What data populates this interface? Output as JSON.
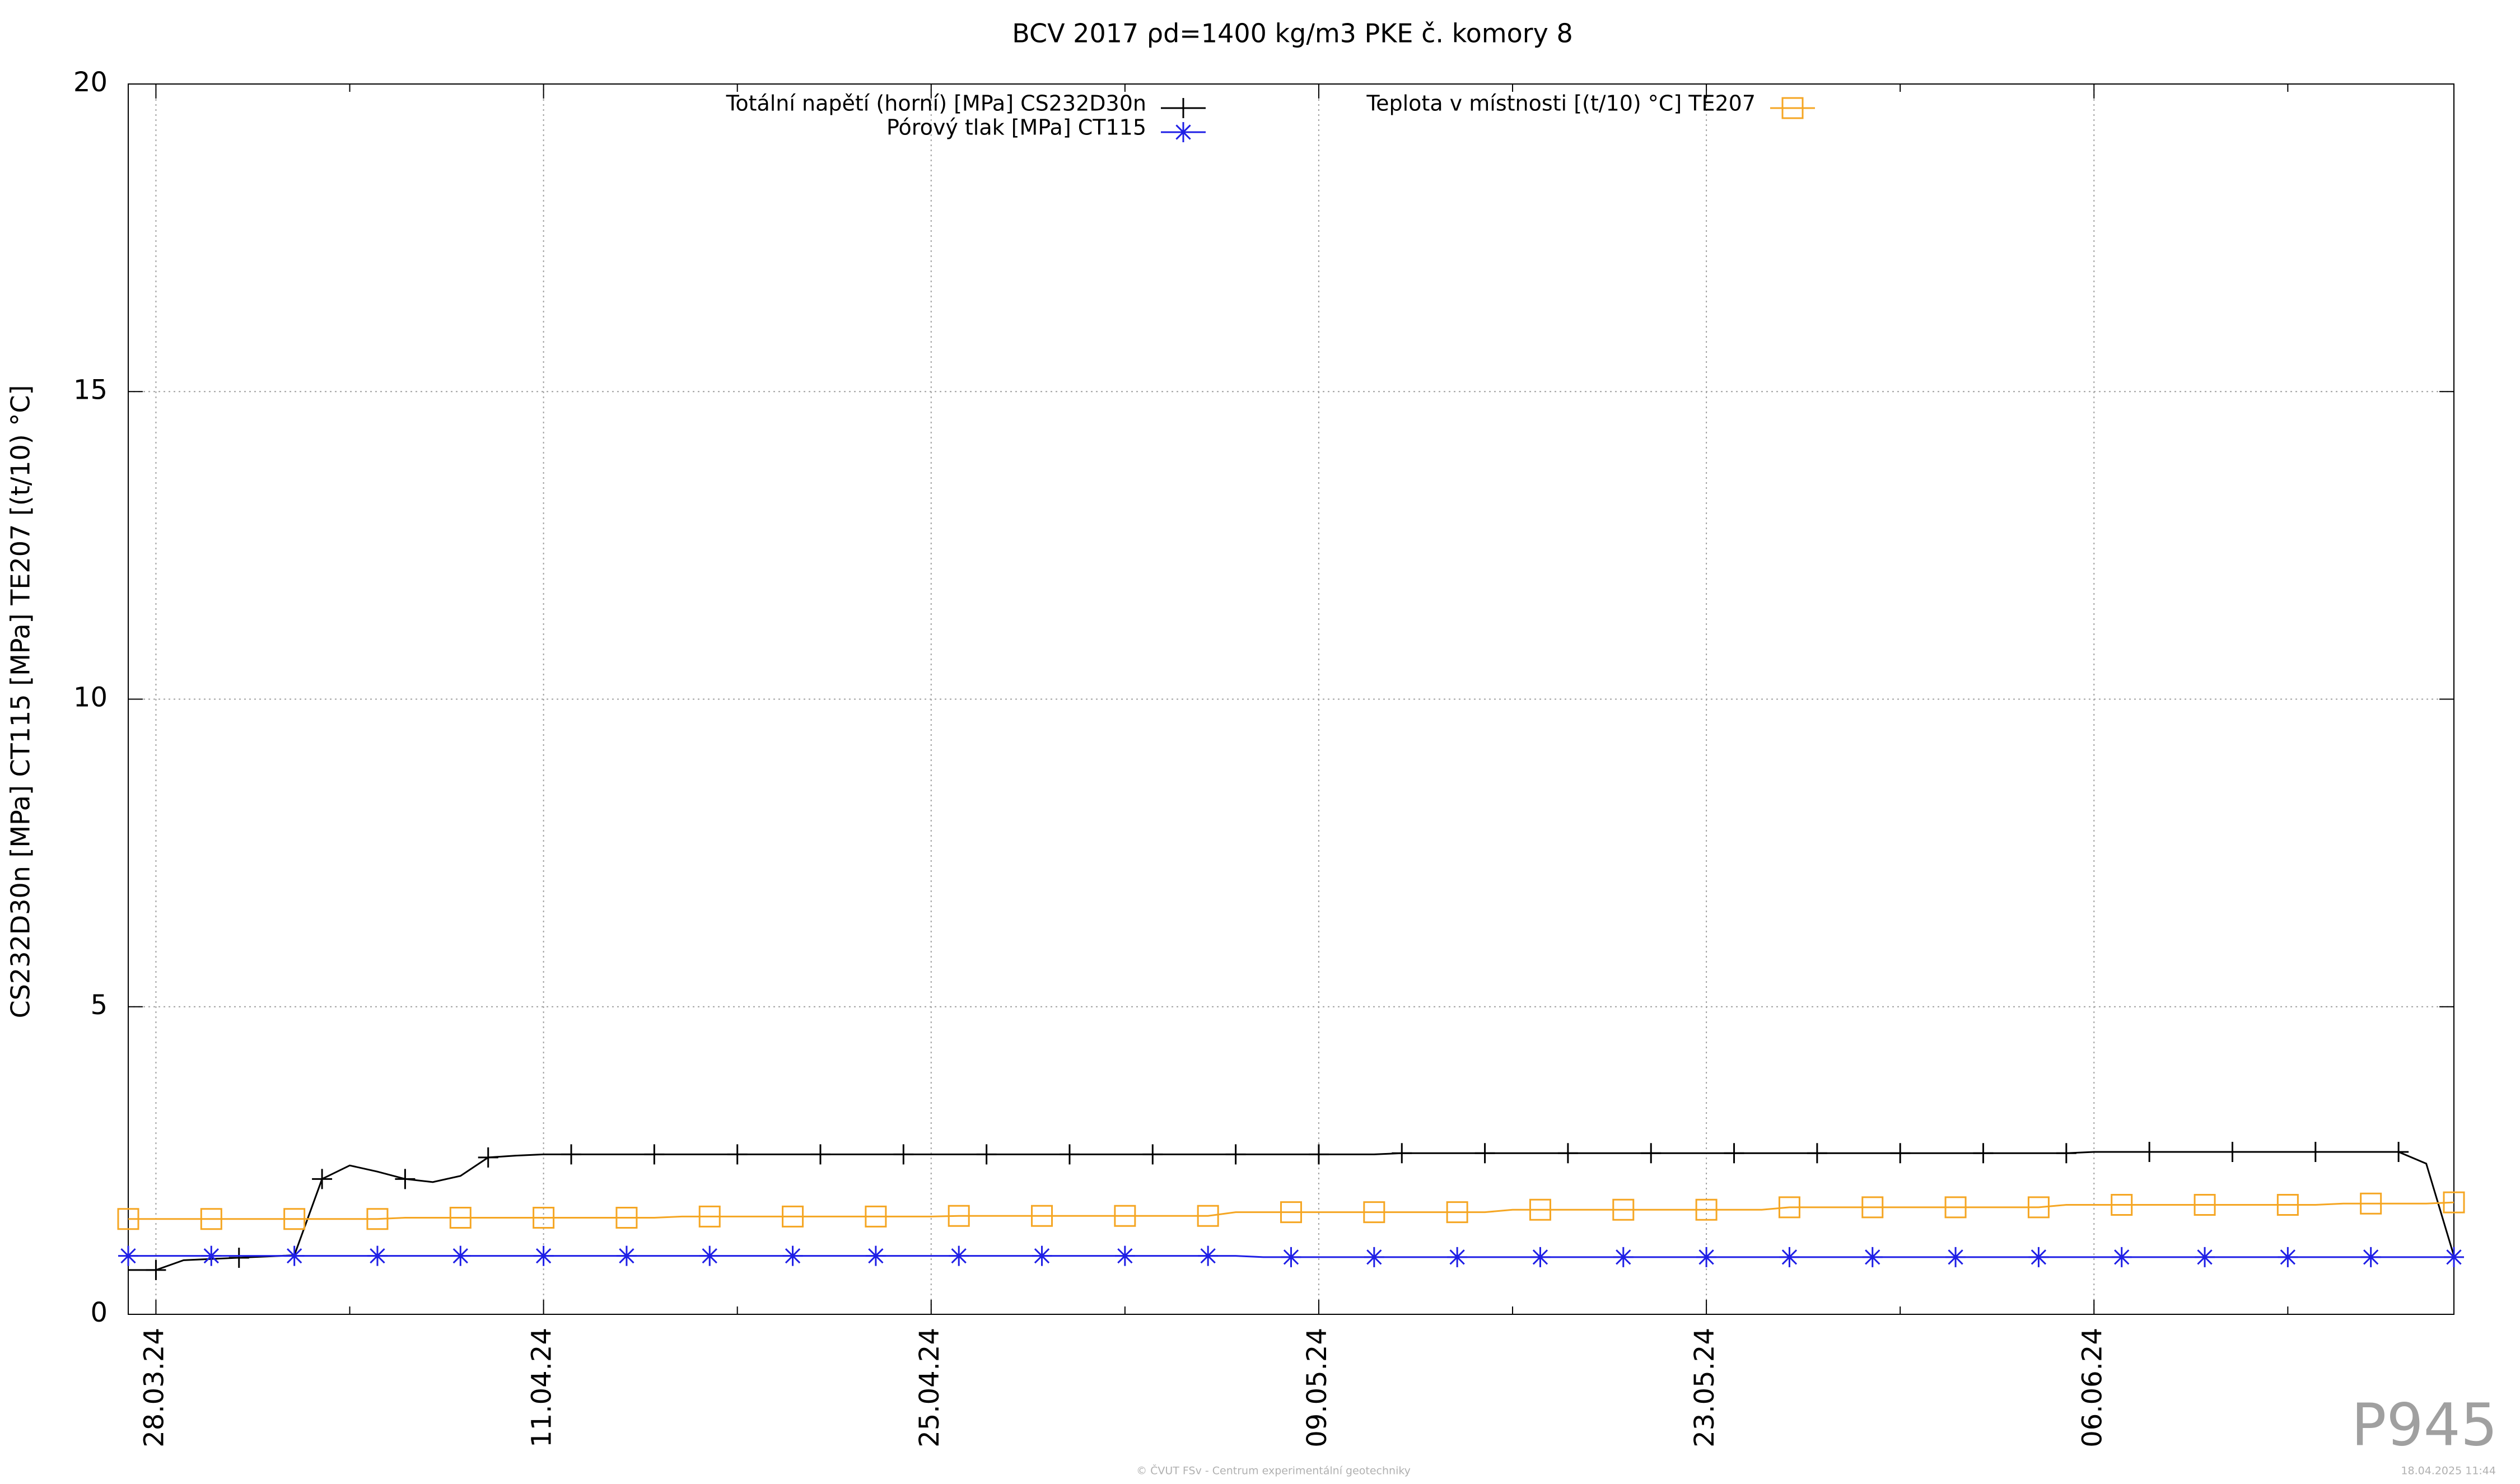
{
  "chart_data": {
    "type": "line",
    "title": "BCV 2017 ρd=1400 kg/m3 PKE č. komory 8",
    "y_label": "CS232D30n [MPa] CT115 [MPa] TE207 [(t/10) °C]",
    "watermark": "P945",
    "footer": "© ČVUT FSv - Centrum experimentální geotechniky",
    "timestamp": "18.04.2025 11:44",
    "grid": true,
    "xlim": [
      "2024-03-27",
      "2024-06-19"
    ],
    "xticks": [
      {
        "value": "2024-03-28",
        "label": "28.03.24"
      },
      {
        "value": "2024-04-11",
        "label": "11.04.24"
      },
      {
        "value": "2024-04-25",
        "label": "25.04.24"
      },
      {
        "value": "2024-05-09",
        "label": "09.05.24"
      },
      {
        "value": "2024-05-23",
        "label": "23.05.24"
      },
      {
        "value": "2024-06-06",
        "label": "06.06.24"
      }
    ],
    "xminorticks": [
      "2024-04-04",
      "2024-04-18",
      "2024-05-02",
      "2024-05-16",
      "2024-05-30",
      "2024-06-13"
    ],
    "ylim": [
      0,
      20
    ],
    "yticks": [
      0,
      5,
      10,
      15,
      20
    ],
    "x": [
      "2024-03-27",
      "2024-03-28",
      "2024-03-29",
      "2024-03-30",
      "2024-03-31",
      "2024-04-01",
      "2024-04-02",
      "2024-04-03",
      "2024-04-04",
      "2024-04-05",
      "2024-04-06",
      "2024-04-07",
      "2024-04-08",
      "2024-04-09",
      "2024-04-10",
      "2024-04-11",
      "2024-04-12",
      "2024-04-13",
      "2024-04-14",
      "2024-04-15",
      "2024-04-16",
      "2024-04-17",
      "2024-04-18",
      "2024-04-19",
      "2024-04-20",
      "2024-04-21",
      "2024-04-22",
      "2024-04-23",
      "2024-04-24",
      "2024-04-25",
      "2024-04-26",
      "2024-04-27",
      "2024-04-28",
      "2024-04-29",
      "2024-04-30",
      "2024-05-01",
      "2024-05-02",
      "2024-05-03",
      "2024-05-04",
      "2024-05-05",
      "2024-05-06",
      "2024-05-07",
      "2024-05-08",
      "2024-05-09",
      "2024-05-10",
      "2024-05-11",
      "2024-05-12",
      "2024-05-13",
      "2024-05-14",
      "2024-05-15",
      "2024-05-16",
      "2024-05-17",
      "2024-05-18",
      "2024-05-19",
      "2024-05-20",
      "2024-05-21",
      "2024-05-22",
      "2024-05-23",
      "2024-05-24",
      "2024-05-25",
      "2024-05-26",
      "2024-05-27",
      "2024-05-28",
      "2024-05-29",
      "2024-05-30",
      "2024-05-31",
      "2024-06-01",
      "2024-06-02",
      "2024-06-03",
      "2024-06-04",
      "2024-06-05",
      "2024-06-06",
      "2024-06-07",
      "2024-06-08",
      "2024-06-09",
      "2024-06-10",
      "2024-06-11",
      "2024-06-12",
      "2024-06-13",
      "2024-06-14",
      "2024-06-15",
      "2024-06-16",
      "2024-06-17",
      "2024-06-18",
      "2024-06-19"
    ],
    "series": [
      {
        "name": "Totální napětí (horní) [MPa] CS232D30n",
        "color": "#000000",
        "marker": "plus",
        "values": [
          0.72,
          0.72,
          0.88,
          0.9,
          0.92,
          0.94,
          0.96,
          2.2,
          2.42,
          2.32,
          2.2,
          2.15,
          2.25,
          2.55,
          2.58,
          2.6,
          2.6,
          2.6,
          2.6,
          2.6,
          2.6,
          2.6,
          2.6,
          2.6,
          2.6,
          2.6,
          2.6,
          2.6,
          2.6,
          2.6,
          2.6,
          2.6,
          2.6,
          2.6,
          2.6,
          2.6,
          2.6,
          2.6,
          2.6,
          2.6,
          2.6,
          2.6,
          2.6,
          2.6,
          2.6,
          2.6,
          2.62,
          2.62,
          2.62,
          2.62,
          2.62,
          2.62,
          2.62,
          2.62,
          2.62,
          2.62,
          2.62,
          2.62,
          2.62,
          2.62,
          2.62,
          2.62,
          2.62,
          2.62,
          2.62,
          2.62,
          2.62,
          2.62,
          2.62,
          2.62,
          2.62,
          2.64,
          2.64,
          2.64,
          2.64,
          2.64,
          2.64,
          2.64,
          2.64,
          2.64,
          2.64,
          2.64,
          2.64,
          2.45,
          0.95
        ]
      },
      {
        "name": "Pórový tlak [MPa] CT115",
        "color": "#1f1fe6",
        "marker": "star",
        "values": [
          0.95,
          0.95,
          0.95,
          0.95,
          0.95,
          0.95,
          0.95,
          0.95,
          0.95,
          0.95,
          0.95,
          0.95,
          0.95,
          0.95,
          0.95,
          0.95,
          0.95,
          0.95,
          0.95,
          0.95,
          0.95,
          0.95,
          0.95,
          0.95,
          0.95,
          0.95,
          0.95,
          0.95,
          0.95,
          0.95,
          0.95,
          0.95,
          0.95,
          0.95,
          0.95,
          0.95,
          0.95,
          0.95,
          0.95,
          0.95,
          0.95,
          0.93,
          0.93,
          0.93,
          0.93,
          0.93,
          0.93,
          0.93,
          0.93,
          0.93,
          0.93,
          0.93,
          0.93,
          0.93,
          0.93,
          0.93,
          0.93,
          0.93,
          0.93,
          0.93,
          0.93,
          0.93,
          0.93,
          0.93,
          0.93,
          0.93,
          0.93,
          0.93,
          0.93,
          0.93,
          0.93,
          0.93,
          0.93,
          0.93,
          0.93,
          0.93,
          0.93,
          0.93,
          0.93,
          0.93,
          0.93,
          0.93,
          0.93,
          0.93,
          0.93
        ]
      },
      {
        "name": "Teplota v místnosti [(t/10) °C] TE207",
        "color": "#f5a623",
        "marker": "square",
        "values": [
          1.55,
          1.55,
          1.55,
          1.55,
          1.55,
          1.55,
          1.55,
          1.55,
          1.55,
          1.55,
          1.57,
          1.57,
          1.57,
          1.57,
          1.57,
          1.57,
          1.57,
          1.57,
          1.57,
          1.57,
          1.59,
          1.59,
          1.59,
          1.59,
          1.59,
          1.59,
          1.59,
          1.59,
          1.59,
          1.59,
          1.6,
          1.6,
          1.6,
          1.6,
          1.6,
          1.6,
          1.6,
          1.6,
          1.6,
          1.6,
          1.66,
          1.66,
          1.66,
          1.66,
          1.66,
          1.66,
          1.66,
          1.66,
          1.66,
          1.66,
          1.7,
          1.7,
          1.7,
          1.7,
          1.7,
          1.7,
          1.7,
          1.7,
          1.7,
          1.7,
          1.74,
          1.74,
          1.74,
          1.74,
          1.74,
          1.74,
          1.74,
          1.74,
          1.74,
          1.74,
          1.78,
          1.78,
          1.78,
          1.78,
          1.78,
          1.78,
          1.78,
          1.78,
          1.78,
          1.78,
          1.8,
          1.8,
          1.8,
          1.8,
          1.82
        ]
      }
    ]
  }
}
